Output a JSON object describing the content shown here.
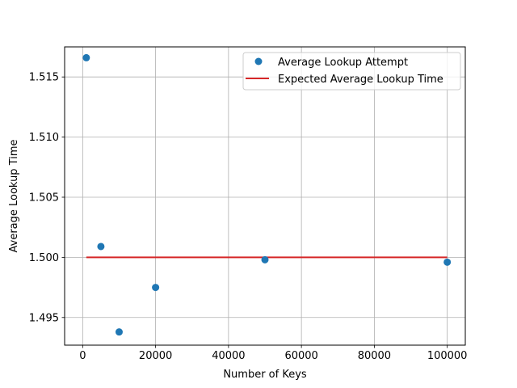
{
  "chart_data": {
    "type": "scatter",
    "xlabel": "Number of Keys",
    "ylabel": "Average Lookup Time",
    "xlim": [
      -4950,
      104950
    ],
    "ylim": [
      1.4927,
      1.5175
    ],
    "grid": true,
    "legend_position": "top-right",
    "x_ticks": [
      0,
      20000,
      40000,
      60000,
      80000,
      100000
    ],
    "x_tick_labels": [
      "0",
      "20000",
      "40000",
      "60000",
      "80000",
      "100000"
    ],
    "y_ticks": [
      1.495,
      1.5,
      1.505,
      1.51,
      1.515
    ],
    "y_tick_labels": [
      "1.495",
      "1.500",
      "1.505",
      "1.510",
      "1.515"
    ],
    "series": [
      {
        "name": "Average Lookup Attempt",
        "kind": "scatter",
        "color": "#1f77b4",
        "x": [
          1000,
          5000,
          10000,
          20000,
          50000,
          100000
        ],
        "y": [
          1.5166,
          1.5009,
          1.4938,
          1.4975,
          1.4998,
          1.4996
        ]
      },
      {
        "name": "Expected Average Lookup Time",
        "kind": "line",
        "color": "#d62728",
        "x": [
          1000,
          100000
        ],
        "y": [
          1.5,
          1.5
        ]
      }
    ]
  }
}
